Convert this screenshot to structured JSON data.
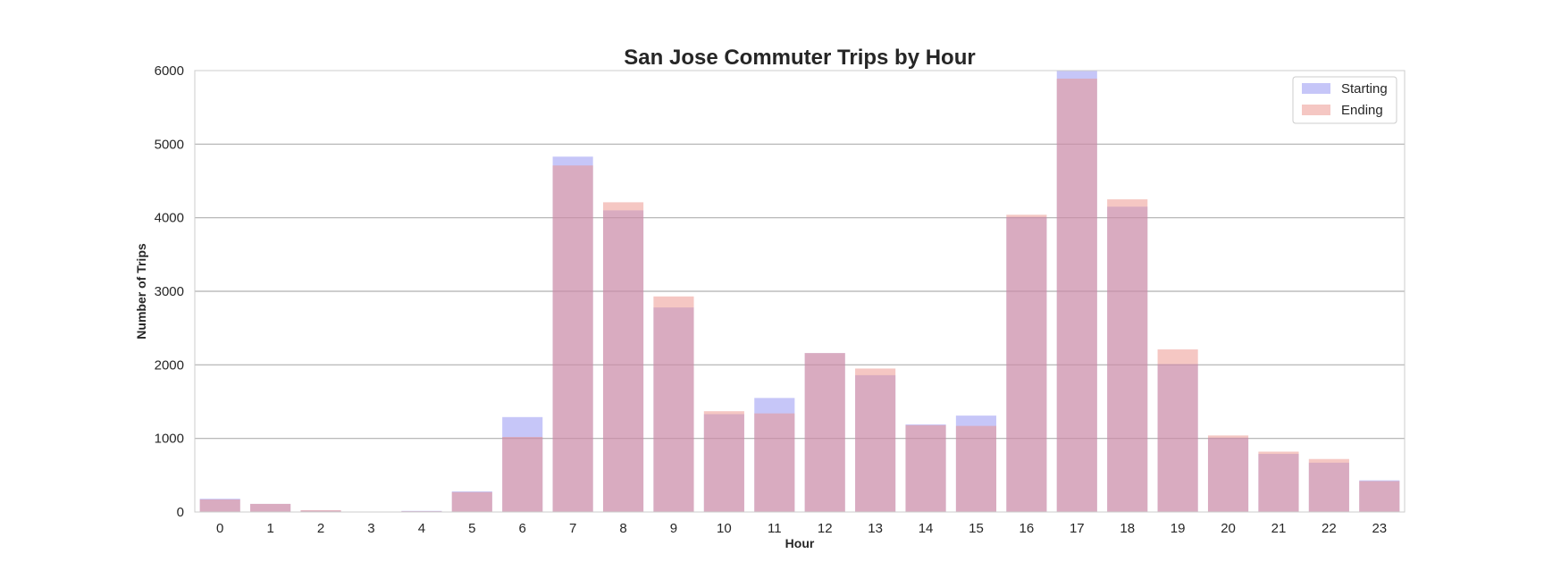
{
  "chart_data": {
    "type": "bar",
    "title": "San Jose Commuter Trips by Hour",
    "xlabel": "Hour",
    "ylabel": "Number of Trips",
    "ylim": [
      0,
      6000
    ],
    "yticks": [
      0,
      1000,
      2000,
      3000,
      4000,
      5000,
      6000
    ],
    "categories": [
      "0",
      "1",
      "2",
      "3",
      "4",
      "5",
      "6",
      "7",
      "8",
      "9",
      "10",
      "11",
      "12",
      "13",
      "14",
      "15",
      "16",
      "17",
      "18",
      "19",
      "20",
      "21",
      "22",
      "23"
    ],
    "grid": "horizontal",
    "legend_position": "top-right",
    "overlay": true,
    "series": [
      {
        "name": "Starting",
        "color": "#8080f0",
        "opacity": 0.45,
        "values": [
          180,
          110,
          20,
          5,
          15,
          280,
          1290,
          4830,
          4100,
          2780,
          1330,
          1550,
          2160,
          1860,
          1190,
          1310,
          4010,
          6000,
          4150,
          2010,
          1010,
          790,
          670,
          430
        ]
      },
      {
        "name": "Ending",
        "color": "#ec8f88",
        "opacity": 0.5,
        "values": [
          170,
          110,
          25,
          5,
          10,
          270,
          1020,
          4710,
          4210,
          2930,
          1370,
          1340,
          2160,
          1950,
          1180,
          1170,
          4040,
          5890,
          4250,
          2210,
          1040,
          820,
          720,
          420
        ]
      }
    ]
  }
}
